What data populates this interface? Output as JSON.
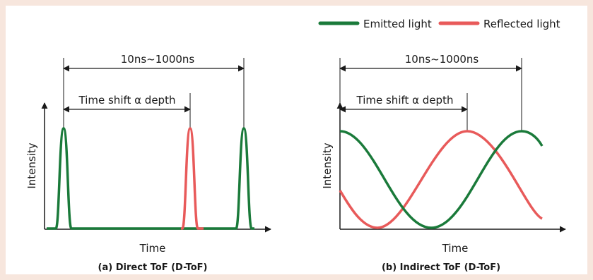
{
  "legend": {
    "items": [
      {
        "label": "Emitted light",
        "color": "#1a7a3a"
      },
      {
        "label": "Reflected light",
        "color": "#e85a5a"
      }
    ]
  },
  "colors": {
    "axis": "#1a1a1a",
    "background": "#f7e6dd",
    "panel": "#ffffff"
  },
  "panel_a": {
    "range_label": "10ns~1000ns",
    "shift_label": "Time shift α depth",
    "ylabel": "Intensity",
    "xlabel": "Time",
    "caption": "(a) Direct ToF (D-ToF)"
  },
  "panel_b": {
    "range_label": "10ns~1000ns",
    "shift_label": "Time shift α depth",
    "ylabel": "Intensity",
    "xlabel": "Time",
    "caption": "(b) Indirect ToF (D-ToF)"
  }
}
